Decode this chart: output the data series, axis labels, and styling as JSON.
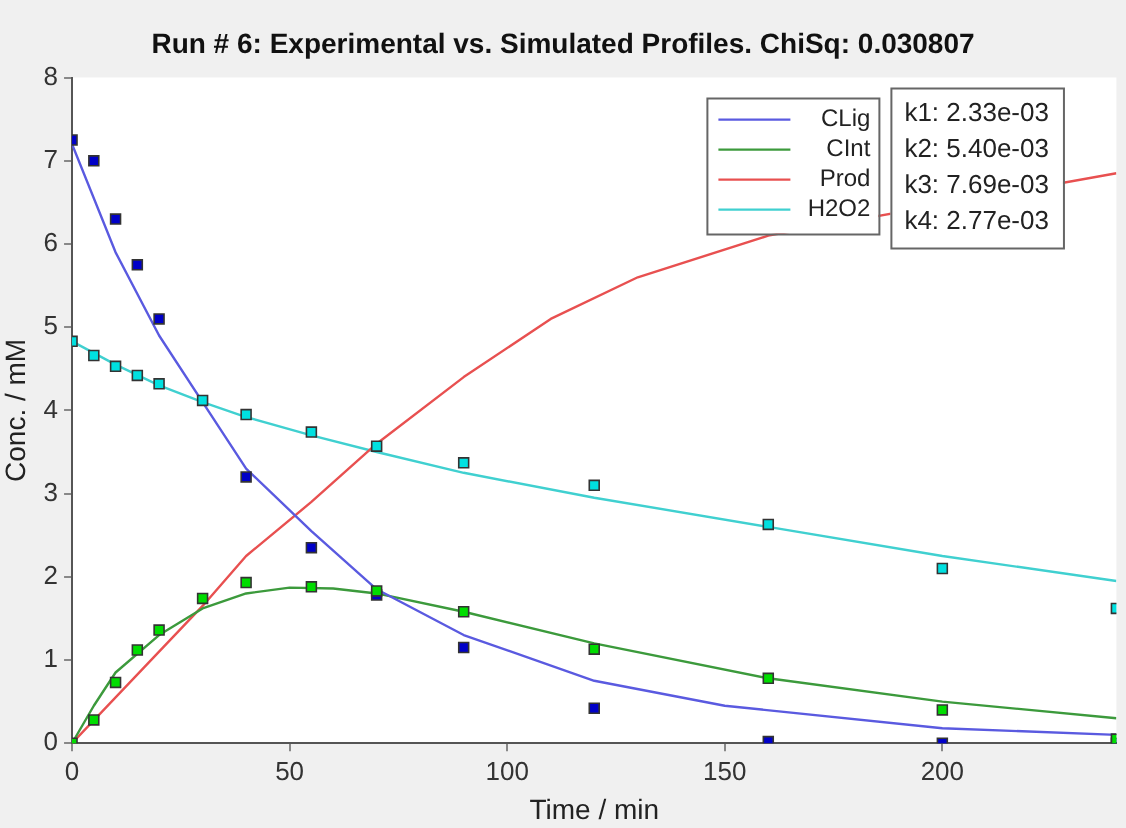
{
  "chart_data": {
    "type": "scatter",
    "title": "Run # 6: Experimental vs. Simulated Profiles. ChiSq: 0.030807",
    "xlabel": "Time / min",
    "ylabel": "Conc. / mM",
    "x": [
      0,
      5,
      10,
      15,
      20,
      30,
      40,
      55,
      70,
      90,
      120,
      160,
      200,
      240
    ],
    "series": [
      {
        "color": "#0000c8",
        "values": [
          7.25,
          7.0,
          6.3,
          5.75,
          5.1,
          null,
          3.2,
          2.35,
          1.78,
          1.15,
          0.42,
          0.02,
          0.0,
          0.0
        ]
      },
      {
        "color": "#00dd00",
        "values": [
          0,
          0.28,
          0.73,
          1.12,
          1.36,
          1.74,
          1.93,
          1.88,
          1.83,
          1.58,
          1.13,
          0.78,
          0.4,
          0.05
        ]
      },
      {
        "color": "#00e0e0",
        "values": [
          4.83,
          4.66,
          4.53,
          4.42,
          4.32,
          4.12,
          3.95,
          3.74,
          3.57,
          3.37,
          3.1,
          2.63,
          2.1,
          1.62
        ]
      },
      {
        "type": "line",
        "name": "CLig",
        "color": "#5a5ae0",
        "marker": "none",
        "x": [
          0,
          10,
          20,
          30,
          40,
          55,
          70,
          90,
          120,
          150,
          200,
          240
        ],
        "values": [
          7.2,
          5.9,
          4.9,
          4.1,
          3.3,
          2.55,
          1.85,
          1.3,
          0.75,
          0.45,
          0.18,
          0.1
        ]
      },
      {
        "type": "line",
        "name": "CInt",
        "color": "#3c9a3c",
        "marker": "none",
        "x": [
          0,
          5,
          10,
          20,
          30,
          40,
          50,
          60,
          70,
          90,
          120,
          160,
          200,
          240
        ],
        "values": [
          0,
          0.45,
          0.85,
          1.3,
          1.62,
          1.8,
          1.87,
          1.86,
          1.8,
          1.58,
          1.2,
          0.78,
          0.5,
          0.3
        ]
      },
      {
        "type": "line",
        "name": "Prod",
        "color": "#e85050",
        "marker": "none",
        "x": [
          0,
          20,
          30,
          40,
          55,
          70,
          90,
          110,
          130,
          160,
          240
        ],
        "values": [
          0,
          1.1,
          1.65,
          2.25,
          2.9,
          3.6,
          4.4,
          5.1,
          5.6,
          6.1,
          6.85
        ]
      },
      {
        "type": "line",
        "name": "H2O2",
        "color": "#40d0d0",
        "marker": "none",
        "x": [
          0,
          10,
          20,
          30,
          40,
          55,
          70,
          90,
          120,
          160,
          200,
          240
        ],
        "values": [
          4.83,
          4.55,
          4.3,
          4.1,
          3.92,
          3.7,
          3.5,
          3.25,
          2.95,
          2.6,
          2.25,
          1.95
        ]
      }
    ],
    "marker": "square",
    "xlim": [
      0,
      240
    ],
    "xticks": [
      0,
      50,
      100,
      150,
      200
    ],
    "ylim": [
      0,
      8
    ],
    "yticks": [
      0,
      1,
      2,
      3,
      4,
      5,
      6,
      7,
      8
    ],
    "grid": false,
    "legend": "top right",
    "annotations": [
      "k1: 2.33e-03",
      "k2: 5.40e-03",
      "k3: 7.69e-03",
      "k4: 2.77e-03"
    ]
  }
}
